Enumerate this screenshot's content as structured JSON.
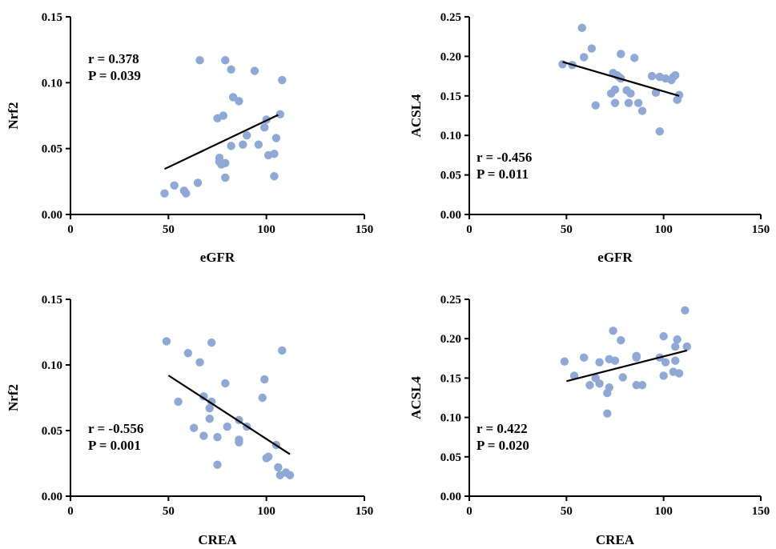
{
  "point_color": "#8fa9d4",
  "chart_data": [
    {
      "type": "scatter",
      "title": "",
      "xlabel": "eGFR",
      "ylabel": "Nrf2",
      "xlim": [
        0,
        150
      ],
      "ylim": [
        0,
        0.15
      ],
      "xticks": [
        0,
        50,
        100,
        150
      ],
      "yticks": [
        0.0,
        0.05,
        0.1,
        0.15
      ],
      "xtick_labels": [
        "0",
        "50",
        "100",
        "150"
      ],
      "ytick_labels": [
        "0.00",
        "0.05",
        "0.10",
        "0.15"
      ],
      "stats": {
        "r": "r = 0.378",
        "p": "P = 0.039",
        "position": "top-left"
      },
      "fit_line": {
        "x": [
          48,
          106
        ],
        "y": [
          0.0345,
          0.0755
        ]
      },
      "points": [
        {
          "x": 48,
          "y": 0.016
        },
        {
          "x": 53,
          "y": 0.022
        },
        {
          "x": 58,
          "y": 0.018
        },
        {
          "x": 59,
          "y": 0.016
        },
        {
          "x": 65,
          "y": 0.024
        },
        {
          "x": 66,
          "y": 0.117
        },
        {
          "x": 75,
          "y": 0.073
        },
        {
          "x": 76,
          "y": 0.043
        },
        {
          "x": 76,
          "y": 0.04
        },
        {
          "x": 77,
          "y": 0.038
        },
        {
          "x": 79,
          "y": 0.039
        },
        {
          "x": 78,
          "y": 0.075
        },
        {
          "x": 79,
          "y": 0.117
        },
        {
          "x": 79,
          "y": 0.028
        },
        {
          "x": 82,
          "y": 0.11
        },
        {
          "x": 82,
          "y": 0.052
        },
        {
          "x": 83,
          "y": 0.089
        },
        {
          "x": 86,
          "y": 0.086
        },
        {
          "x": 88,
          "y": 0.053
        },
        {
          "x": 90,
          "y": 0.06
        },
        {
          "x": 94,
          "y": 0.109
        },
        {
          "x": 96,
          "y": 0.053
        },
        {
          "x": 99,
          "y": 0.066
        },
        {
          "x": 100,
          "y": 0.072
        },
        {
          "x": 101,
          "y": 0.045
        },
        {
          "x": 104,
          "y": 0.046
        },
        {
          "x": 104,
          "y": 0.029
        },
        {
          "x": 105,
          "y": 0.058
        },
        {
          "x": 107,
          "y": 0.076
        },
        {
          "x": 108,
          "y": 0.102
        }
      ]
    },
    {
      "type": "scatter",
      "title": "",
      "xlabel": "eGFR",
      "ylabel": "ACSL4",
      "xlim": [
        0,
        150
      ],
      "ylim": [
        0,
        0.25
      ],
      "xticks": [
        0,
        50,
        100,
        150
      ],
      "yticks": [
        0.0,
        0.05,
        0.1,
        0.15,
        0.2,
        0.25
      ],
      "xtick_labels": [
        "0",
        "50",
        "100",
        "150"
      ],
      "ytick_labels": [
        "0.00",
        "0.05",
        "0.10",
        "0.15",
        "0.20",
        "0.25"
      ],
      "stats": {
        "r": "r = -0.456",
        "p": "P = 0.011",
        "position": "bottom-left"
      },
      "fit_line": {
        "x": [
          48,
          108
        ],
        "y": [
          0.193,
          0.15
        ]
      },
      "points": [
        {
          "x": 48,
          "y": 0.19
        },
        {
          "x": 53,
          "y": 0.189
        },
        {
          "x": 58,
          "y": 0.236
        },
        {
          "x": 59,
          "y": 0.199
        },
        {
          "x": 63,
          "y": 0.21
        },
        {
          "x": 65,
          "y": 0.138
        },
        {
          "x": 73,
          "y": 0.153
        },
        {
          "x": 74,
          "y": 0.179
        },
        {
          "x": 75,
          "y": 0.141
        },
        {
          "x": 75,
          "y": 0.158
        },
        {
          "x": 76,
          "y": 0.176
        },
        {
          "x": 77,
          "y": 0.174
        },
        {
          "x": 78,
          "y": 0.203
        },
        {
          "x": 78,
          "y": 0.172
        },
        {
          "x": 81,
          "y": 0.157
        },
        {
          "x": 82,
          "y": 0.141
        },
        {
          "x": 83,
          "y": 0.153
        },
        {
          "x": 85,
          "y": 0.198
        },
        {
          "x": 87,
          "y": 0.141
        },
        {
          "x": 89,
          "y": 0.131
        },
        {
          "x": 94,
          "y": 0.175
        },
        {
          "x": 96,
          "y": 0.154
        },
        {
          "x": 98,
          "y": 0.174
        },
        {
          "x": 98,
          "y": 0.105
        },
        {
          "x": 101,
          "y": 0.172
        },
        {
          "x": 104,
          "y": 0.17
        },
        {
          "x": 105,
          "y": 0.174
        },
        {
          "x": 106,
          "y": 0.176
        },
        {
          "x": 107,
          "y": 0.145
        },
        {
          "x": 108,
          "y": 0.151
        }
      ]
    },
    {
      "type": "scatter",
      "title": "",
      "xlabel": "CREA",
      "ylabel": "Nrf2",
      "xlim": [
        0,
        150
      ],
      "ylim": [
        0,
        0.15
      ],
      "xticks": [
        0,
        50,
        100,
        150
      ],
      "yticks": [
        0.0,
        0.05,
        0.1,
        0.15
      ],
      "xtick_labels": [
        "0",
        "50",
        "100",
        "150"
      ],
      "ytick_labels": [
        "0.00",
        "0.05",
        "0.10",
        "0.15"
      ],
      "stats": {
        "r": "r = -0.556",
        "p": "P = 0.001",
        "position": "bottom-left"
      },
      "fit_line": {
        "x": [
          50,
          112
        ],
        "y": [
          0.092,
          0.032
        ]
      },
      "points": [
        {
          "x": 49,
          "y": 0.118
        },
        {
          "x": 55,
          "y": 0.072
        },
        {
          "x": 60,
          "y": 0.109
        },
        {
          "x": 63,
          "y": 0.052
        },
        {
          "x": 66,
          "y": 0.102
        },
        {
          "x": 68,
          "y": 0.076
        },
        {
          "x": 68,
          "y": 0.046
        },
        {
          "x": 71,
          "y": 0.067
        },
        {
          "x": 71,
          "y": 0.059
        },
        {
          "x": 72,
          "y": 0.117
        },
        {
          "x": 72,
          "y": 0.072
        },
        {
          "x": 75,
          "y": 0.045
        },
        {
          "x": 75,
          "y": 0.024
        },
        {
          "x": 79,
          "y": 0.086
        },
        {
          "x": 80,
          "y": 0.053
        },
        {
          "x": 86,
          "y": 0.058
        },
        {
          "x": 86,
          "y": 0.043
        },
        {
          "x": 86,
          "y": 0.041
        },
        {
          "x": 90,
          "y": 0.053
        },
        {
          "x": 98,
          "y": 0.075
        },
        {
          "x": 99,
          "y": 0.089
        },
        {
          "x": 100,
          "y": 0.029
        },
        {
          "x": 101,
          "y": 0.03
        },
        {
          "x": 105,
          "y": 0.039
        },
        {
          "x": 106,
          "y": 0.022
        },
        {
          "x": 107,
          "y": 0.016
        },
        {
          "x": 108,
          "y": 0.111
        },
        {
          "x": 110,
          "y": 0.018
        },
        {
          "x": 112,
          "y": 0.016
        }
      ]
    },
    {
      "type": "scatter",
      "title": "",
      "xlabel": "CREA",
      "ylabel": "ACSL4",
      "xlim": [
        0,
        150
      ],
      "ylim": [
        0,
        0.25
      ],
      "xticks": [
        0,
        50,
        100,
        150
      ],
      "yticks": [
        0.0,
        0.05,
        0.1,
        0.15,
        0.2,
        0.25
      ],
      "xtick_labels": [
        "0",
        "50",
        "100",
        "150"
      ],
      "ytick_labels": [
        "0.00",
        "0.05",
        "0.10",
        "0.15",
        "0.20",
        "0.25"
      ],
      "stats": {
        "r": "r = 0.422",
        "p": "P = 0.020",
        "position": "bottom-left"
      },
      "fit_line": {
        "x": [
          50,
          112
        ],
        "y": [
          0.146,
          0.185
        ]
      },
      "points": [
        {
          "x": 49,
          "y": 0.171
        },
        {
          "x": 54,
          "y": 0.153
        },
        {
          "x": 59,
          "y": 0.176
        },
        {
          "x": 62,
          "y": 0.141
        },
        {
          "x": 65,
          "y": 0.15
        },
        {
          "x": 67,
          "y": 0.17
        },
        {
          "x": 67,
          "y": 0.143
        },
        {
          "x": 71,
          "y": 0.105
        },
        {
          "x": 71,
          "y": 0.131
        },
        {
          "x": 72,
          "y": 0.138
        },
        {
          "x": 72,
          "y": 0.174
        },
        {
          "x": 74,
          "y": 0.21
        },
        {
          "x": 75,
          "y": 0.172
        },
        {
          "x": 78,
          "y": 0.198
        },
        {
          "x": 79,
          "y": 0.151
        },
        {
          "x": 86,
          "y": 0.178
        },
        {
          "x": 86,
          "y": 0.176
        },
        {
          "x": 86,
          "y": 0.141
        },
        {
          "x": 89,
          "y": 0.141
        },
        {
          "x": 98,
          "y": 0.176
        },
        {
          "x": 100,
          "y": 0.203
        },
        {
          "x": 100,
          "y": 0.153
        },
        {
          "x": 101,
          "y": 0.17
        },
        {
          "x": 105,
          "y": 0.158
        },
        {
          "x": 106,
          "y": 0.172
        },
        {
          "x": 106,
          "y": 0.19
        },
        {
          "x": 107,
          "y": 0.199
        },
        {
          "x": 108,
          "y": 0.156
        },
        {
          "x": 111,
          "y": 0.236
        },
        {
          "x": 112,
          "y": 0.19
        }
      ]
    }
  ]
}
